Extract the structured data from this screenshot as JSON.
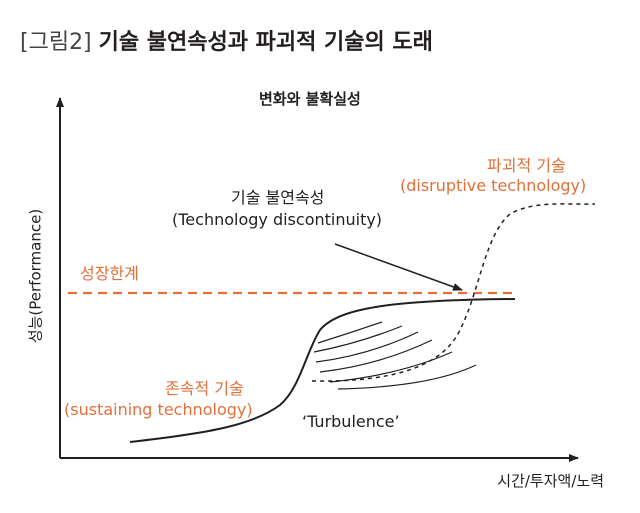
{
  "figure": {
    "tag": "[그림2]",
    "title": "기술 불연속성과 파괴적 기술의 도래"
  },
  "diagram": {
    "subtitle": "변화와 불확실성",
    "y_axis_label": "성능(Performance)",
    "x_axis_label": "시간/투자액/노력",
    "performance_limit_label": "성장한계",
    "sustaining_label": "존속적 기술",
    "sustaining_label_en": "(sustaining technology)",
    "disruptive_label": "파괴적 기술",
    "disruptive_label_en": "(disruptive technology)",
    "discontinuity_label": "기술 불연속성",
    "discontinuity_label_en": "(Technology discontinuity)",
    "turbulence_label": "‘Turbulence’"
  },
  "colors": {
    "accent_orange": "#e2703a",
    "line_dark": "#231f20"
  }
}
